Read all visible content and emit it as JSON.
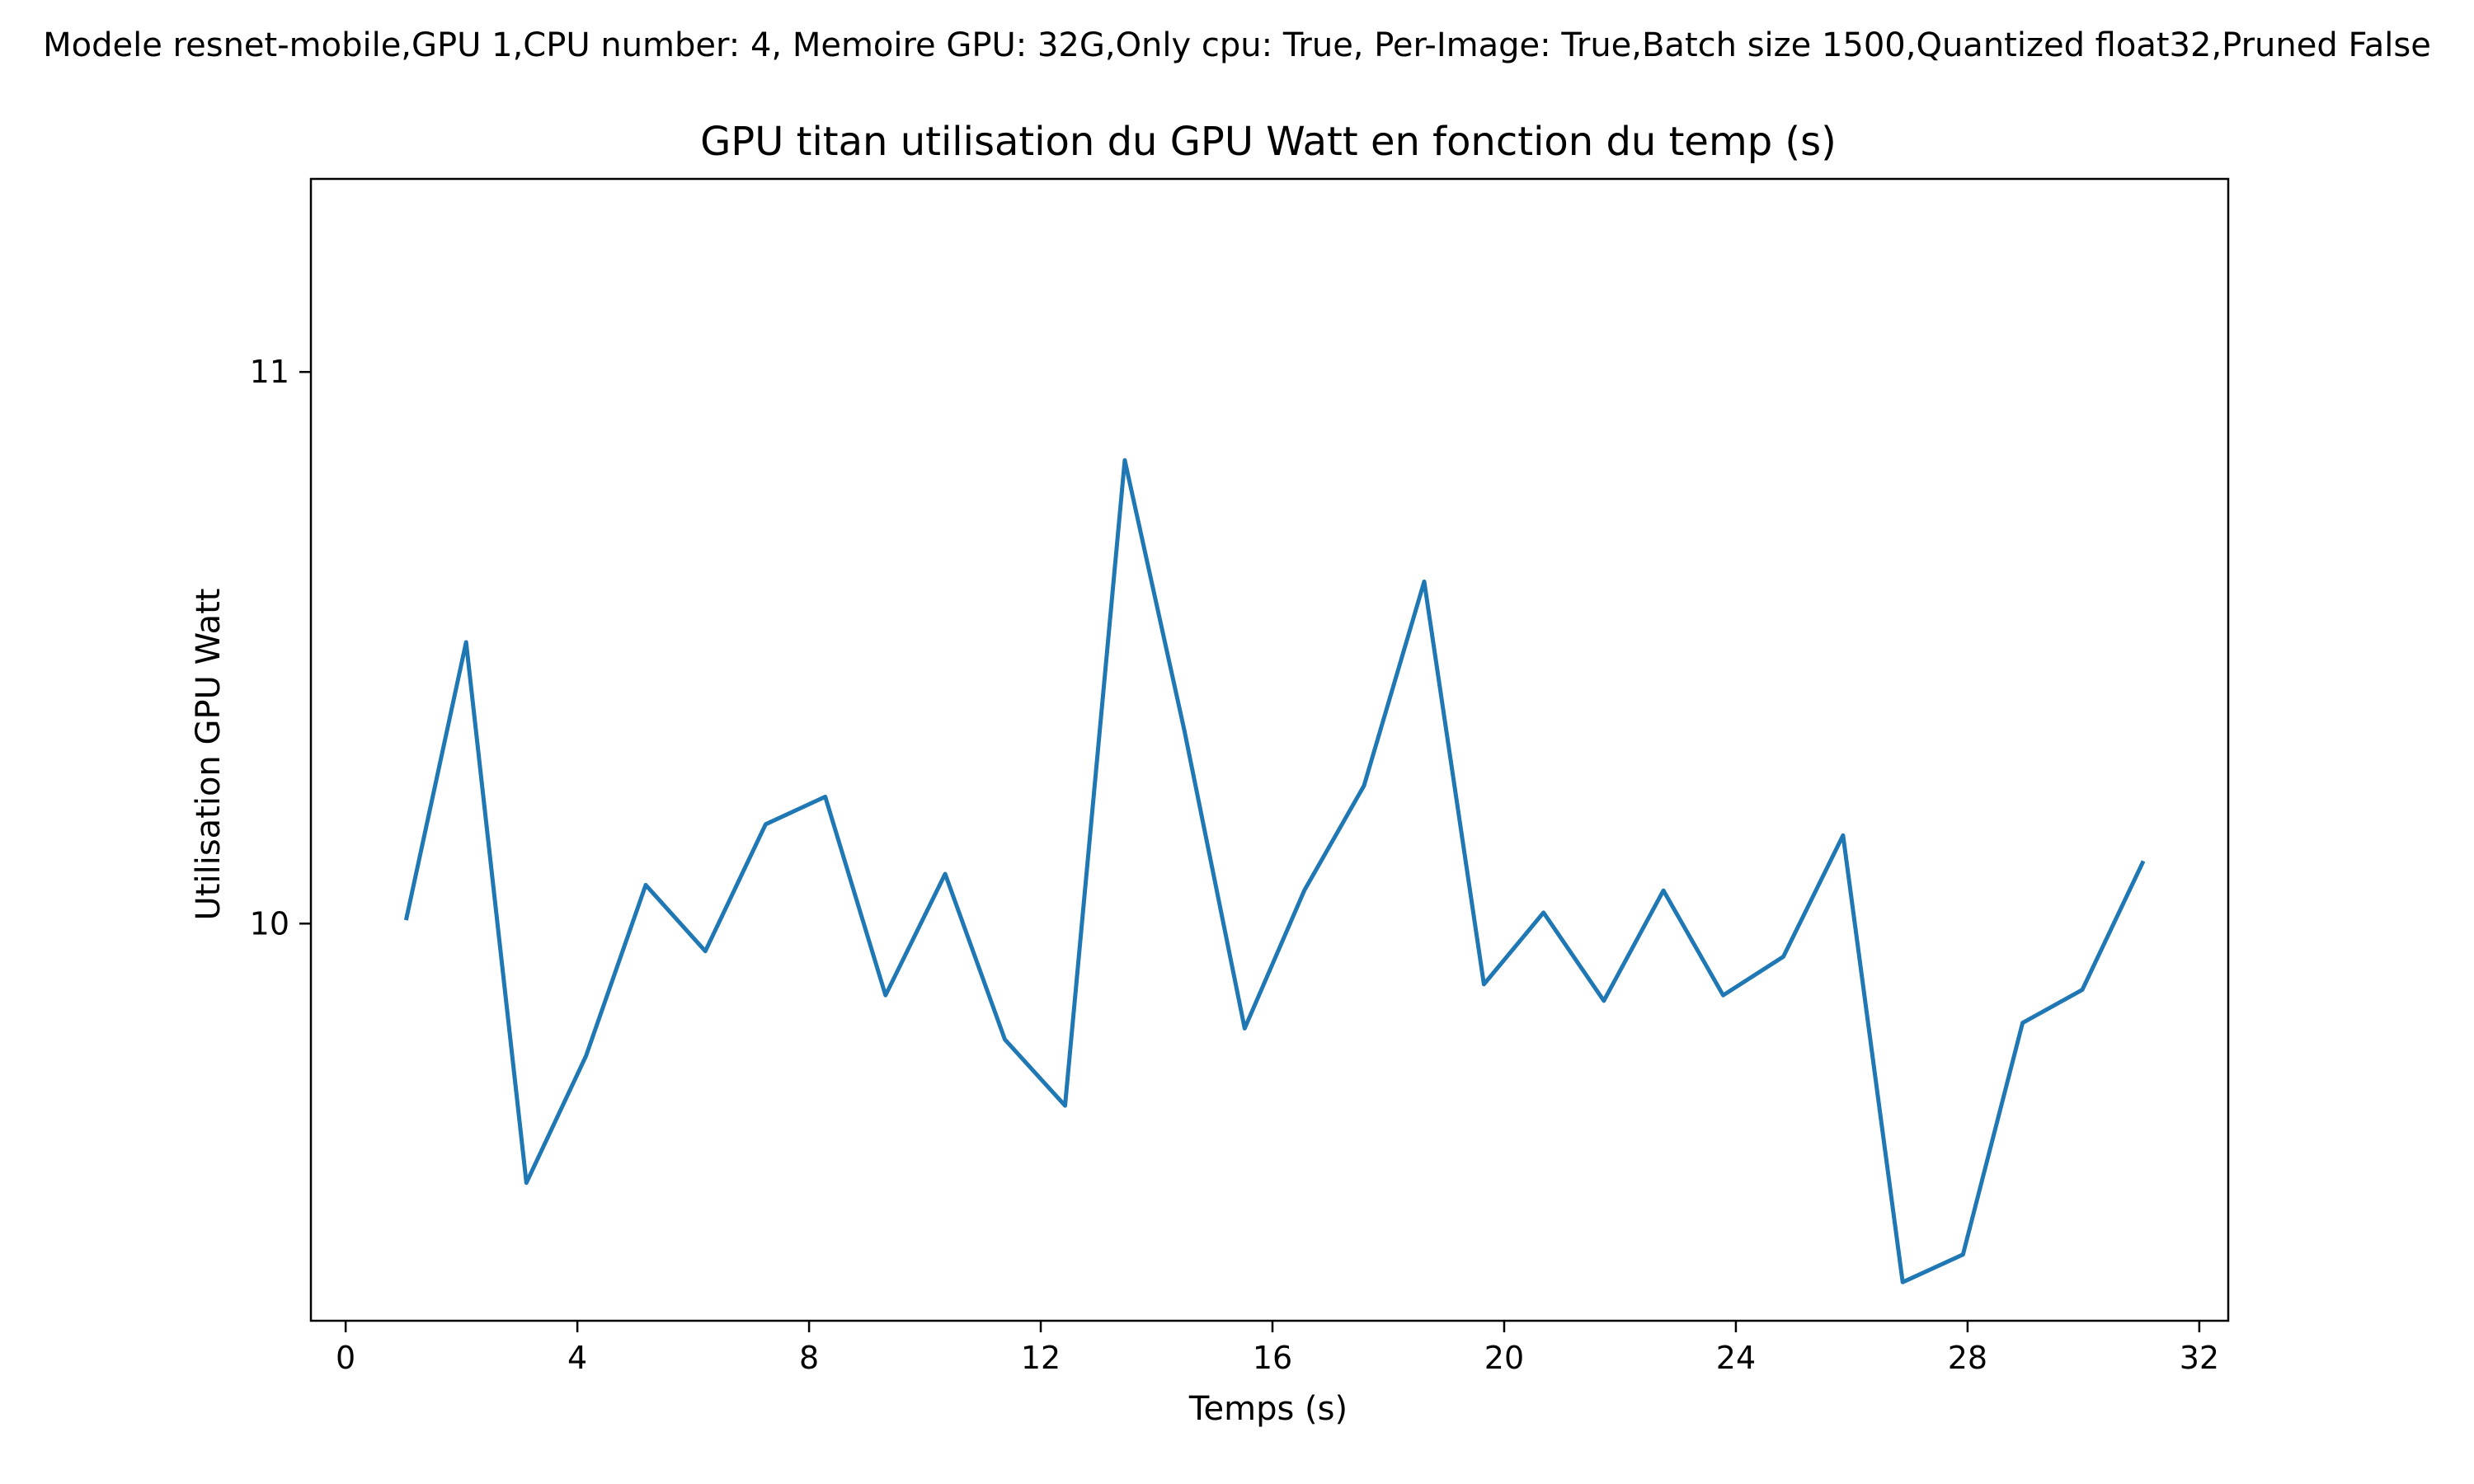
{
  "figure": {
    "suptitle": "Modele resnet-mobile,GPU 1,CPU number: 4, Memoire GPU: 32G,Only cpu: True, Per-Image: True,Batch size 1500,Quantized float32,Pruned False"
  },
  "chart_data": {
    "type": "line",
    "title": "GPU titan utilisation du GPU Watt en fonction du temp (s)",
    "xlabel": "Temps (s)",
    "ylabel": "Utilisation GPU Watt",
    "xlim": [
      -0.6,
      32.5
    ],
    "ylim": [
      9.28,
      11.35
    ],
    "xticks": [
      0,
      4,
      8,
      12,
      16,
      20,
      24,
      28,
      32
    ],
    "yticks": [
      10,
      11
    ],
    "grid": false,
    "line_color": "#1f77b4",
    "series": [
      {
        "x": [
          1.05,
          2.08,
          3.12,
          4.15,
          5.18,
          6.21,
          7.25,
          8.28,
          9.32,
          10.35,
          11.38,
          12.42,
          13.45,
          14.48,
          15.52,
          16.55,
          17.58,
          18.62,
          19.65,
          20.68,
          21.72,
          22.75,
          23.78,
          24.82,
          25.85,
          26.88,
          27.92,
          28.95,
          29.98,
          31.02
        ],
        "y": [
          10.01,
          10.51,
          9.53,
          9.76,
          10.07,
          9.95,
          10.18,
          10.23,
          9.87,
          10.09,
          9.79,
          9.67,
          10.84,
          10.35,
          9.81,
          10.06,
          10.25,
          10.62,
          9.89,
          10.02,
          9.86,
          10.06,
          9.87,
          9.94,
          10.16,
          9.35,
          9.4,
          9.82,
          9.88,
          10.11
        ]
      }
    ]
  }
}
